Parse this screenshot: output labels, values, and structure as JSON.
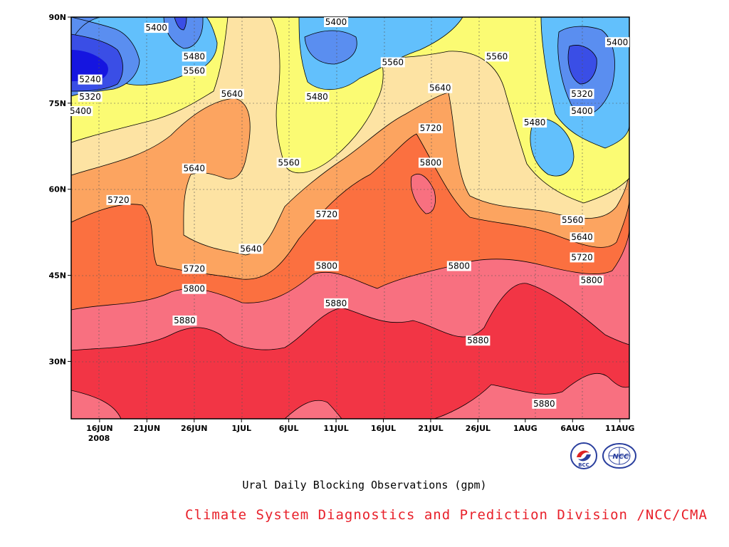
{
  "chart_data": {
    "type": "contour",
    "title": "Ural Daily Blocking Observations (gpm)",
    "x_tick_labels": [
      "16JUN",
      "21JUN",
      "26JUN",
      "1JUL",
      "6JUL",
      "11JUL",
      "16JUL",
      "21JUL",
      "26JUL",
      "1AUG",
      "6AUG",
      "11AUG"
    ],
    "x_sub_label": "2008",
    "y_tick_labels": [
      "90N",
      "75N",
      "60N",
      "45N",
      "30N"
    ],
    "x_range": [
      "2008-06-13",
      "2008-08-11"
    ],
    "y_range_deg": [
      20,
      90
    ],
    "grid": "dotted",
    "contour_levels": [
      5240,
      5320,
      5400,
      5480,
      5560,
      5640,
      5720,
      5800,
      5880
    ],
    "fill_colors": [
      "#1515e0",
      "#3a4ee6",
      "#5a8ef0",
      "#62c0fc",
      "#fbfb73",
      "#fde3a3",
      "#fca460",
      "#fb7040",
      "#f87080",
      "#f23545"
    ],
    "contour_labels": [
      {
        "text": "5240",
        "x": "2008-06-15",
        "y": 79
      },
      {
        "text": "5320",
        "x": "2008-06-15",
        "y": 76
      },
      {
        "text": "5400",
        "x": "2008-06-14",
        "y": 73.5
      },
      {
        "text": "5400",
        "x": "2008-06-22",
        "y": 88
      },
      {
        "text": "5480",
        "x": "2008-06-26",
        "y": 83
      },
      {
        "text": "5560",
        "x": "2008-06-26",
        "y": 80.5
      },
      {
        "text": "5640",
        "x": "2008-06-30",
        "y": 76.5
      },
      {
        "text": "5640",
        "x": "2008-06-26",
        "y": 63.5
      },
      {
        "text": "5720",
        "x": "2008-06-18",
        "y": 58
      },
      {
        "text": "5720",
        "x": "2008-06-26",
        "y": 46
      },
      {
        "text": "5800",
        "x": "2008-06-26",
        "y": 42.5
      },
      {
        "text": "5880",
        "x": "2008-06-25",
        "y": 37
      },
      {
        "text": "5400",
        "x": "2008-07-11",
        "y": 89
      },
      {
        "text": "5480",
        "x": "2008-07-09",
        "y": 76
      },
      {
        "text": "5560",
        "x": "2008-07-06",
        "y": 64.5
      },
      {
        "text": "5640",
        "x": "2008-07-02",
        "y": 49.5
      },
      {
        "text": "5560",
        "x": "2008-07-17",
        "y": 82
      },
      {
        "text": "5560",
        "x": "2008-07-28",
        "y": 83
      },
      {
        "text": "5640",
        "x": "2008-07-22",
        "y": 77.5
      },
      {
        "text": "5720",
        "x": "2008-07-21",
        "y": 70.5
      },
      {
        "text": "5800",
        "x": "2008-07-21",
        "y": 64.5
      },
      {
        "text": "5720",
        "x": "2008-07-10",
        "y": 55.5
      },
      {
        "text": "5800",
        "x": "2008-07-10",
        "y": 46.5
      },
      {
        "text": "5880",
        "x": "2008-07-11",
        "y": 40
      },
      {
        "text": "5800",
        "x": "2008-07-24",
        "y": 46.5
      },
      {
        "text": "5880",
        "x": "2008-07-26",
        "y": 33.5
      },
      {
        "text": "5480",
        "x": "2008-08-01",
        "y": 71.5
      },
      {
        "text": "5320",
        "x": "2008-08-06",
        "y": 76.5
      },
      {
        "text": "5400",
        "x": "2008-08-06",
        "y": 73.5
      },
      {
        "text": "5400",
        "x": "2008-08-11",
        "y": 85.5
      },
      {
        "text": "5560",
        "x": "2008-08-05",
        "y": 54.5
      },
      {
        "text": "5640",
        "x": "2008-08-06",
        "y": 51.5
      },
      {
        "text": "5720",
        "x": "2008-08-06",
        "y": 48
      },
      {
        "text": "5800",
        "x": "2008-08-07",
        "y": 44
      },
      {
        "text": "5880",
        "x": "2008-08-02",
        "y": 22.5
      }
    ]
  },
  "caption": "Ural Daily Blocking Observations (gpm)",
  "credit": "Climate System Diagnostics and Prediction Division /NCC/CMA",
  "logos": [
    {
      "icon": "bcc-logo-icon",
      "text": "BCC"
    },
    {
      "icon": "ncc-logo-icon",
      "text": "NCC"
    }
  ]
}
